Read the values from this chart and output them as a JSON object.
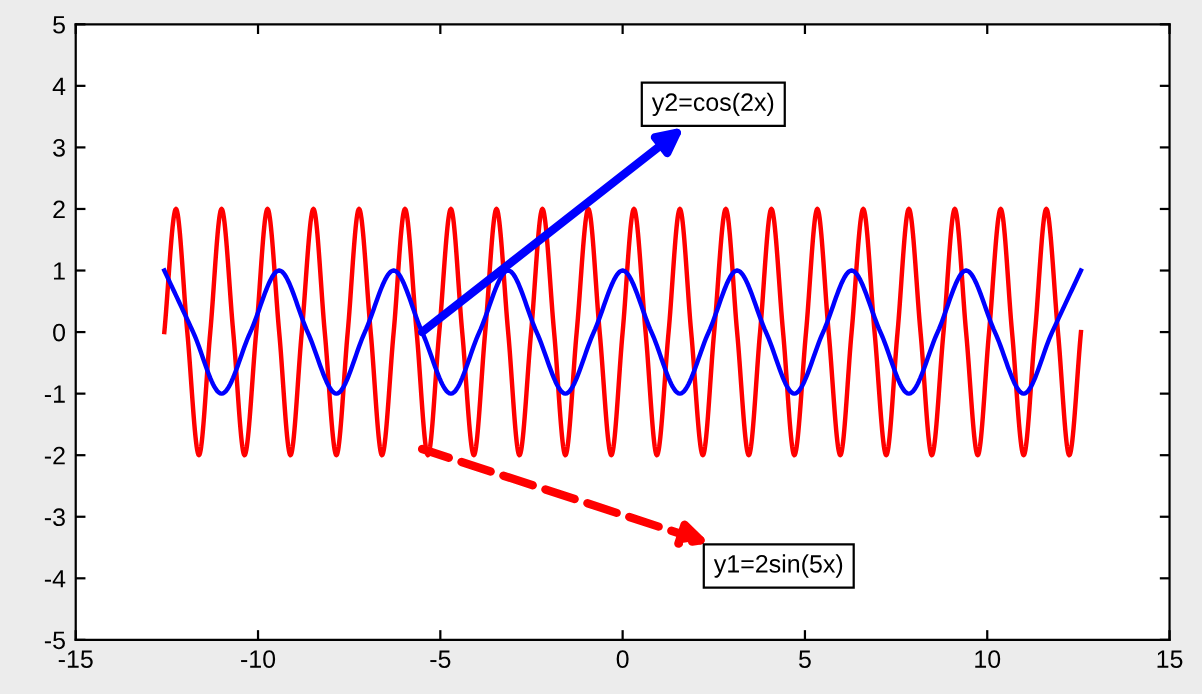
{
  "chart_data": {
    "type": "line",
    "xlim": [
      -15,
      15
    ],
    "ylim": [
      -5,
      5
    ],
    "xticks": [
      -15,
      -10,
      -5,
      0,
      5,
      10,
      15
    ],
    "yticks": [
      -5,
      -4,
      -3,
      -2,
      -1,
      0,
      1,
      2,
      3,
      4,
      5
    ],
    "grid": false,
    "legend": false,
    "series": [
      {
        "color": "#ff0000",
        "x": [
          -12.57,
          -12.25,
          -11.94,
          -11.62,
          -11.31,
          -11.0,
          -10.68,
          -10.37,
          -10.05,
          -9.74,
          -9.42,
          -9.11,
          -8.8,
          -8.48,
          -8.17,
          -7.85,
          -7.54,
          -7.23,
          -6.91,
          -6.6,
          -6.28,
          -5.97,
          -5.65,
          -5.34,
          -5.03,
          -4.71,
          -4.4,
          -4.08,
          -3.77,
          -3.46,
          -3.14,
          -2.83,
          -2.51,
          -2.2,
          -1.88,
          -1.57,
          -1.26,
          -0.94,
          -0.63,
          -0.31,
          0,
          0.31,
          0.63,
          0.94,
          1.26,
          1.57,
          1.88,
          2.2,
          2.51,
          2.83,
          3.14,
          3.46,
          3.77,
          4.08,
          4.4,
          4.71,
          5.03,
          5.34,
          5.65,
          5.97,
          6.28,
          6.6,
          6.91,
          7.23,
          7.54,
          7.85,
          8.17,
          8.48,
          8.8,
          9.11,
          9.42,
          9.74,
          10.05,
          10.37,
          10.68,
          11.0,
          11.31,
          11.62,
          11.94,
          12.25,
          12.57
        ],
        "values": [
          0,
          2,
          0,
          -2,
          0,
          2,
          0,
          -2,
          0,
          2,
          0,
          -2,
          0,
          2,
          0,
          -2,
          0,
          2,
          0,
          -2,
          0,
          2,
          0,
          -2,
          0,
          2,
          0,
          -2,
          0,
          2,
          0,
          -2,
          0,
          2,
          0,
          -2,
          0,
          2,
          0,
          -2,
          0,
          2,
          0,
          -2,
          0,
          2,
          0,
          -2,
          0,
          2,
          0,
          -2,
          0,
          2,
          0,
          -2,
          0,
          2,
          0,
          -2,
          0,
          2,
          0,
          -2,
          0,
          2,
          0,
          -2,
          0,
          2,
          0,
          -2,
          0,
          2,
          0,
          -2,
          0,
          2,
          0,
          -2,
          0
        ]
      },
      {
        "color": "#0000ff",
        "x": [
          -12.57,
          -11.78,
          -11.0,
          -10.21,
          -9.42,
          -8.64,
          -7.85,
          -7.07,
          -6.28,
          -5.5,
          -4.71,
          -3.93,
          -3.14,
          -2.36,
          -1.57,
          -0.79,
          0,
          0.79,
          1.57,
          2.36,
          3.14,
          3.93,
          4.71,
          5.5,
          6.28,
          7.07,
          7.85,
          8.64,
          9.42,
          10.21,
          11.0,
          11.78,
          12.57
        ],
        "values": [
          1,
          0,
          -1,
          0,
          1,
          0,
          -1,
          0,
          1,
          0,
          -1,
          0,
          1,
          0,
          -1,
          0,
          1,
          0,
          -1,
          0,
          1,
          0,
          -1,
          0,
          1,
          0,
          -1,
          0,
          1,
          0,
          -1,
          0,
          1
        ]
      }
    ],
    "annotations": [
      {
        "text": "y2=cos(2x)",
        "x": -5.5,
        "y": 0
      },
      {
        "text": "y1=2sin(5x)",
        "x": -5.5,
        "y": -1.9
      }
    ]
  }
}
